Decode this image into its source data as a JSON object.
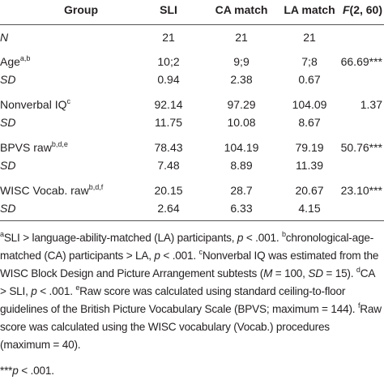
{
  "table": {
    "header": [
      [
        {
          "text": "Group"
        }
      ],
      [
        {
          "text": "SLI"
        }
      ],
      [
        {
          "text": "CA match"
        }
      ],
      [
        {
          "text": "LA match"
        }
      ],
      [
        {
          "i": "F"
        },
        {
          "text": "(2, 60)"
        }
      ]
    ],
    "rows": [
      {
        "label": [
          {
            "i": "N"
          }
        ],
        "cells": [
          "21",
          "21",
          "21"
        ]
      },
      {
        "label": [
          {
            "text": "Age"
          },
          {
            "sup": "a,b"
          }
        ],
        "cells": [
          "10;2",
          "9;9",
          "7;8"
        ],
        "f": "66.69***"
      },
      {
        "label": [
          {
            "i": "SD"
          }
        ],
        "cells": [
          "0.94",
          "2.38",
          "0.67"
        ]
      },
      {
        "label": [
          {
            "text": "Nonverbal IQ"
          },
          {
            "sup": "c"
          }
        ],
        "cells": [
          "92.14",
          "97.29",
          "104.09"
        ],
        "f": "1.37"
      },
      {
        "label": [
          {
            "i": "SD"
          }
        ],
        "cells": [
          "11.75",
          "10.08",
          "8.67"
        ]
      },
      {
        "label": [
          {
            "text": "BPVS raw"
          },
          {
            "sup": "b,d,e"
          }
        ],
        "cells": [
          "78.43",
          "104.19",
          "79.19"
        ],
        "f": "50.76***"
      },
      {
        "label": [
          {
            "i": "SD"
          }
        ],
        "cells": [
          "7.48",
          "8.89",
          "11.39"
        ]
      },
      {
        "label": [
          {
            "text": "WISC Vocab. raw"
          },
          {
            "sup": "b,d,f"
          }
        ],
        "cells": [
          "20.15",
          "28.7",
          "20.67"
        ],
        "f": "23.10***"
      },
      {
        "label": [
          {
            "i": "SD"
          }
        ],
        "cells": [
          "2.64",
          "6.33",
          "4.15"
        ]
      }
    ]
  },
  "notes": [
    [
      {
        "sup": "a"
      },
      {
        "text": "SLI > language-ability-matched (LA) participants, "
      },
      {
        "i": "p"
      },
      {
        "text": " < .001. "
      },
      {
        "sup": "b"
      },
      {
        "text": "chronological-age-matched (CA) participants > LA, "
      },
      {
        "i": "p"
      },
      {
        "text": " < .001. "
      },
      {
        "sup": "c"
      },
      {
        "text": "Nonverbal IQ was estimated from the WISC Block Design and Picture Arrangement subtests ("
      },
      {
        "i": "M"
      },
      {
        "text": " = 100, "
      },
      {
        "i": "SD"
      },
      {
        "text": " = 15). "
      },
      {
        "sup": "d"
      },
      {
        "text": "CA > SLI, "
      },
      {
        "i": "p"
      },
      {
        "text": " < .001. "
      },
      {
        "sup": "e"
      },
      {
        "text": "Raw score was calculated using standard ceiling-to-floor guidelines of the British Picture Vocabulary Scale (BPVS; maximum = 144). "
      },
      {
        "sup": "f"
      },
      {
        "text": "Raw score was calculated using the WISC vocabulary (Vocab.) procedures (maximum = 40)."
      }
    ],
    [
      {
        "text": "***"
      },
      {
        "i": "p"
      },
      {
        "text": " < .001."
      }
    ]
  ]
}
